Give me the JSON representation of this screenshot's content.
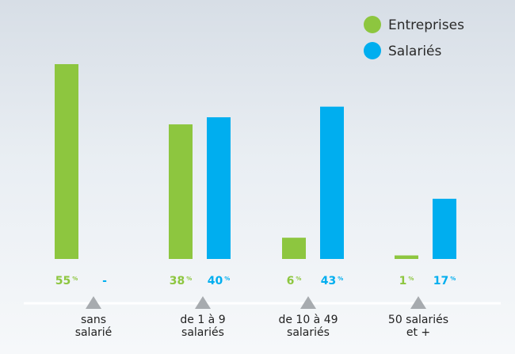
{
  "chart_data": {
    "type": "bar",
    "categories": [
      [
        "sans",
        "salarié"
      ],
      [
        "de 1 à 9",
        "salariés"
      ],
      [
        "de 10 à 49",
        "salariés"
      ],
      [
        "50 salariés",
        "et +"
      ]
    ],
    "series": [
      {
        "name": "Entreprises",
        "color": "#8dc63f",
        "values": [
          55,
          38,
          6,
          1
        ],
        "labels": [
          "55",
          "38",
          "6",
          "1"
        ]
      },
      {
        "name": "Salariés",
        "color": "#00aeef",
        "values": [
          null,
          40,
          43,
          17
        ],
        "labels": [
          "-",
          "40",
          "43",
          "17"
        ]
      }
    ],
    "unit": "%",
    "ylim": [
      0,
      55
    ],
    "legend_position": "top-right"
  },
  "colors": {
    "axis": "#ffffff",
    "marker": "#a7abaf",
    "label_green": "#8dc63f",
    "label_blue": "#00aeef"
  }
}
